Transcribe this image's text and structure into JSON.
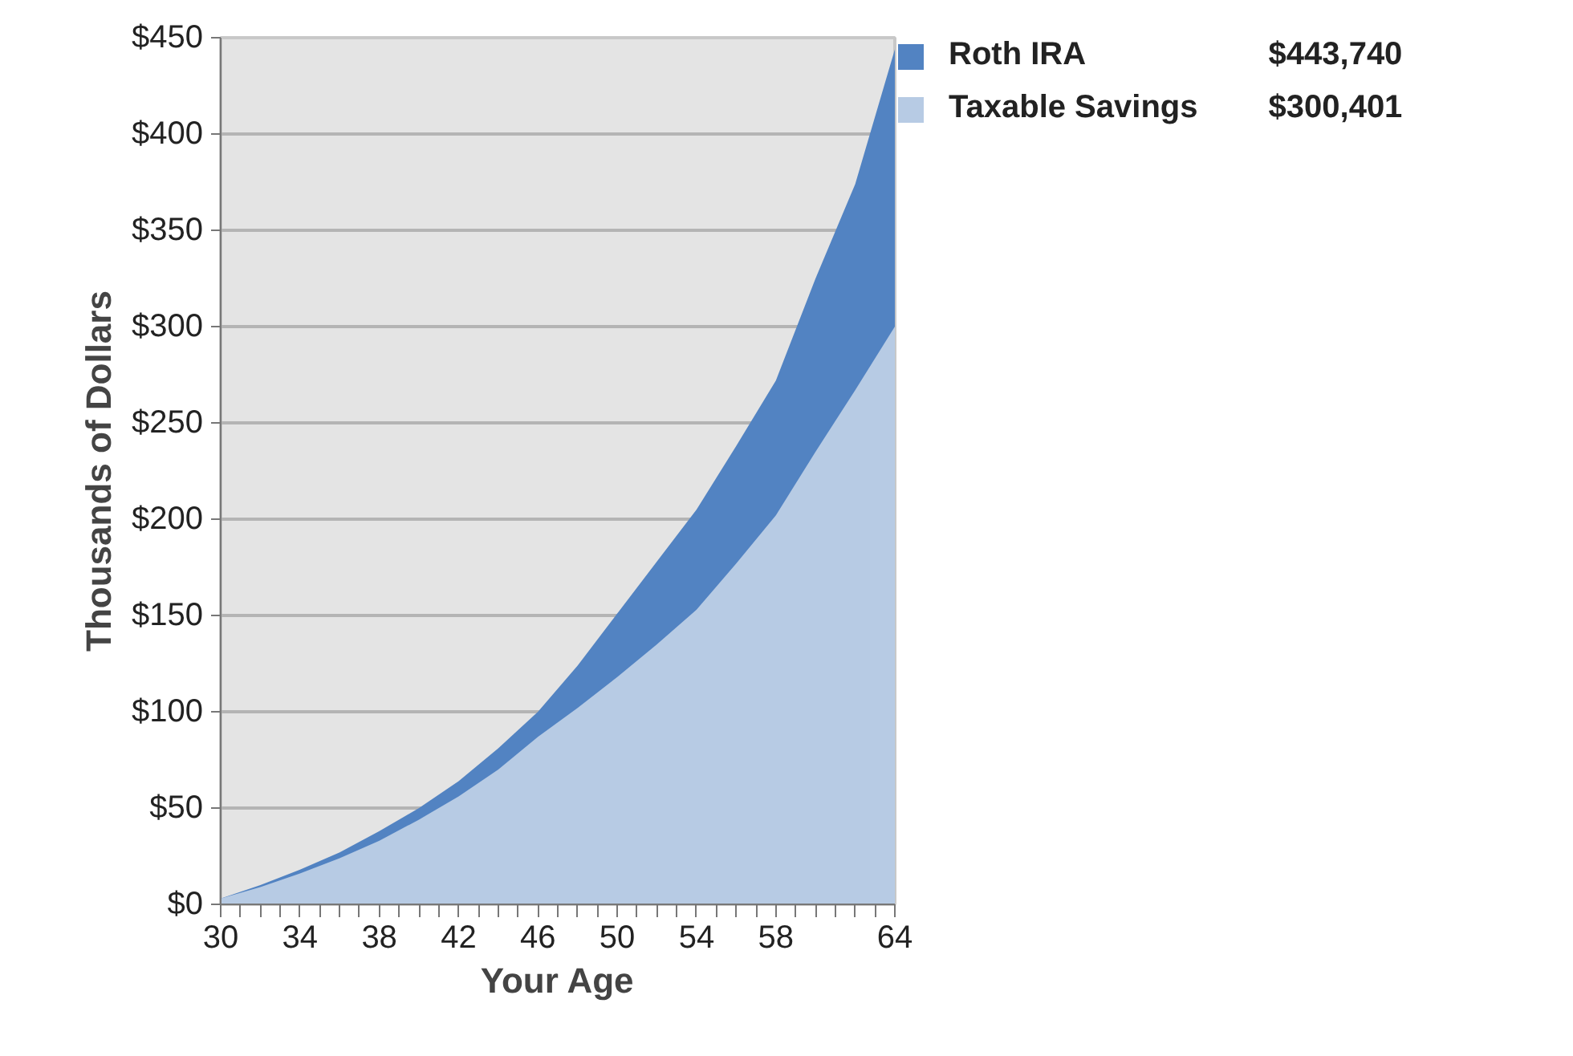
{
  "chart_data": {
    "type": "area",
    "xlabel": "Your Age",
    "ylabel": "Thousands of Dollars",
    "x": [
      30,
      32,
      34,
      36,
      38,
      40,
      42,
      44,
      46,
      48,
      50,
      52,
      54,
      56,
      58,
      60,
      62,
      64
    ],
    "series": [
      {
        "name": "Roth IRA",
        "color": "#5283c2",
        "values": [
          3,
          10,
          18,
          27,
          38,
          50,
          64,
          81,
          100,
          124,
          151,
          178,
          205,
          238,
          272,
          325,
          374,
          444
        ]
      },
      {
        "name": "Taxable Savings",
        "color": "#b7cbe4",
        "values": [
          3,
          9,
          16,
          24,
          33,
          44,
          56,
          70,
          87,
          102,
          118,
          135,
          153,
          177,
          202,
          235,
          267,
          300
        ]
      }
    ],
    "annotations": [
      "$443,740",
      "$300,401"
    ],
    "xlim": [
      30,
      64
    ],
    "ylim": [
      0,
      450
    ],
    "xticks": [
      30,
      {
        "value": 31,
        "label": null
      },
      {
        "value": 32,
        "label": null
      },
      {
        "value": 33,
        "label": null
      },
      34,
      {
        "value": 35,
        "label": null
      },
      {
        "value": 36,
        "label": null
      },
      {
        "value": 37,
        "label": null
      },
      38,
      {
        "value": 39,
        "label": null
      },
      {
        "value": 40,
        "label": null
      },
      {
        "value": 41,
        "label": null
      },
      42,
      {
        "value": 43,
        "label": null
      },
      {
        "value": 44,
        "label": null
      },
      {
        "value": 45,
        "label": null
      },
      46,
      {
        "value": 47,
        "label": null
      },
      {
        "value": 48,
        "label": null
      },
      {
        "value": 49,
        "label": null
      },
      50,
      {
        "value": 51,
        "label": null
      },
      {
        "value": 52,
        "label": null
      },
      {
        "value": 53,
        "label": null
      },
      54,
      {
        "value": 55,
        "label": null
      },
      {
        "value": 56,
        "label": null
      },
      {
        "value": 57,
        "label": null
      },
      58,
      {
        "value": 59,
        "label": null
      },
      {
        "value": 60,
        "label": null
      },
      {
        "value": 61,
        "label": null
      },
      {
        "value": 62,
        "label": null
      },
      {
        "value": 63,
        "label": null
      },
      64
    ],
    "yticks": [
      {
        "value": 0,
        "label": "$0"
      },
      {
        "value": 50,
        "label": "$50"
      },
      {
        "value": 100,
        "label": "$100"
      },
      {
        "value": 150,
        "label": "$150"
      },
      {
        "value": 200,
        "label": "$200"
      },
      {
        "value": 250,
        "label": "$250"
      },
      {
        "value": 300,
        "label": "$300"
      },
      {
        "value": 350,
        "label": "$350"
      },
      {
        "value": 400,
        "label": "$400"
      },
      {
        "value": 450,
        "label": "$450"
      }
    ],
    "grid": "y",
    "legend": "top right"
  }
}
